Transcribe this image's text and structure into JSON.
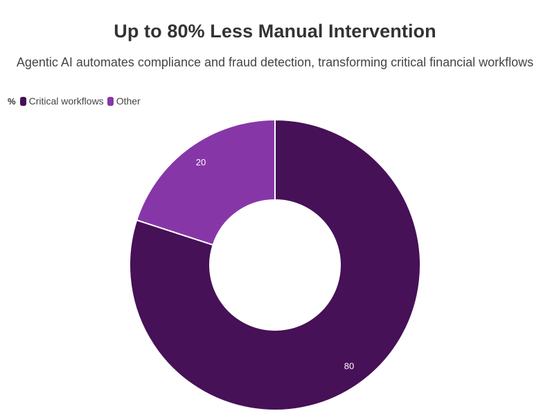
{
  "chart_data": {
    "type": "pie",
    "subtype": "donut",
    "title": "Up to 80% Less Manual Intervention",
    "subtitle": "Agentic AI automates compliance and fraud detection, transforming critical financial workflows",
    "unit": "%",
    "categories": [
      "Critical workflows",
      "Other"
    ],
    "values": [
      80,
      20
    ],
    "colors": [
      "#461157",
      "#8736A8"
    ],
    "data_labels": [
      "80",
      "20"
    ],
    "legend_position": "top-left",
    "start_angle_deg": 0,
    "direction": "clockwise"
  },
  "legend": {
    "unit": "%",
    "items": [
      {
        "label": "Critical workflows",
        "color": "#461157"
      },
      {
        "label": "Other",
        "color": "#8736A8"
      }
    ]
  }
}
